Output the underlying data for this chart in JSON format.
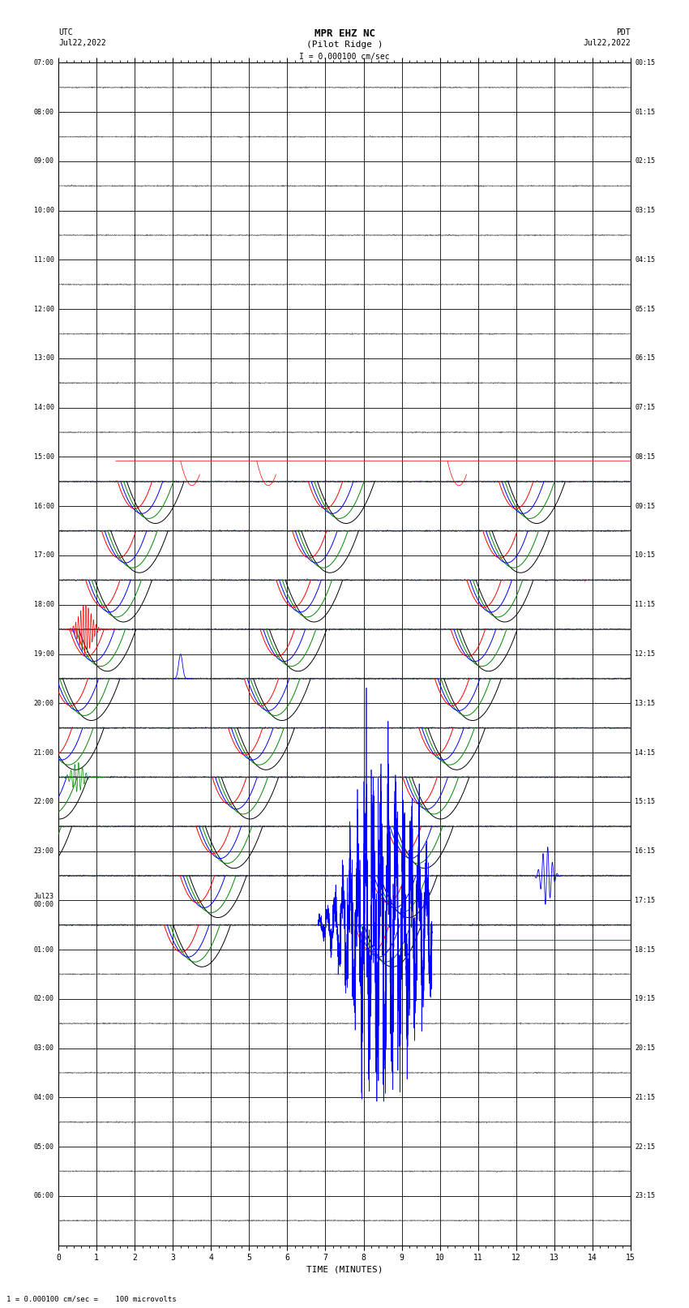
{
  "title_line1": "MPR EHZ NC",
  "title_line2": "(Pilot Ridge )",
  "title_line3": "I = 0.000100 cm/sec",
  "left_label_top": "UTC",
  "left_label_date": "Jul22,2022",
  "right_label_top": "PDT",
  "right_label_date": "Jul22,2022",
  "bottom_label": "TIME (MINUTES)",
  "footnote": "1 = 0.000100 cm/sec =    100 microvolts",
  "utc_times": [
    "07:00",
    "08:00",
    "09:00",
    "10:00",
    "11:00",
    "12:00",
    "13:00",
    "14:00",
    "15:00",
    "16:00",
    "17:00",
    "18:00",
    "19:00",
    "20:00",
    "21:00",
    "22:00",
    "23:00",
    "Jul23\n00:00",
    "01:00",
    "02:00",
    "03:00",
    "04:00",
    "05:00",
    "06:00"
  ],
  "pdt_times": [
    "00:15",
    "01:15",
    "02:15",
    "03:15",
    "04:15",
    "05:15",
    "06:15",
    "07:15",
    "08:15",
    "09:15",
    "10:15",
    "11:15",
    "12:15",
    "13:15",
    "14:15",
    "15:15",
    "16:15",
    "17:15",
    "18:15",
    "19:15",
    "20:15",
    "21:15",
    "22:15",
    "23:15"
  ],
  "n_rows": 24,
  "n_minutes": 15,
  "bg_color": "#ffffff",
  "grid_color_major": "#000000",
  "grid_color_minor": "#888888",
  "trace_blue": "#0000ff",
  "trace_red": "#ff0000",
  "trace_green": "#008800",
  "trace_black": "#000000",
  "figsize": [
    8.5,
    16.13
  ],
  "dpi": 100
}
